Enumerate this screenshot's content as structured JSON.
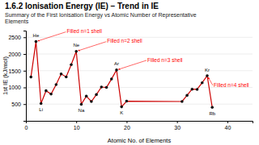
{
  "chart_data": {
    "type": "line",
    "title": "1.6.2 Ionisation Energy (IE) – Trend in IE",
    "subtitle": "Summary of the First Ionisation Energy vs Atomic Number of Representative\nElements",
    "xlabel": "Atomic No. of Elements",
    "ylabel": "1st IE (kJ/mol)",
    "x": [
      1,
      2,
      3,
      4,
      5,
      6,
      7,
      8,
      9,
      10,
      11,
      12,
      13,
      14,
      15,
      16,
      17,
      18,
      19,
      20,
      31,
      32,
      33,
      34,
      35,
      36,
      37
    ],
    "values": [
      1312,
      2372,
      520,
      900,
      800,
      1086,
      1402,
      1314,
      1681,
      2080,
      496,
      738,
      578,
      786,
      1012,
      1000,
      1251,
      1521,
      419,
      590,
      579,
      762,
      947,
      941,
      1140,
      1351,
      403
    ],
    "color": "#cc0000",
    "marker": "circle",
    "xlim": [
      0,
      45
    ],
    "ylim": [
      0,
      2700
    ],
    "xticks": [
      0,
      10,
      20,
      30,
      40
    ],
    "yticks": [
      500,
      1000,
      1500,
      2000,
      2500
    ],
    "grid": true,
    "element_labels": [
      {
        "text": "He",
        "x": 2,
        "y": 2372
      },
      {
        "text": "Li",
        "x": 3,
        "y": 520
      },
      {
        "text": "Ne",
        "x": 10,
        "y": 2080
      },
      {
        "text": "Na",
        "x": 11,
        "y": 496
      },
      {
        "text": "Ar",
        "x": 18,
        "y": 1521
      },
      {
        "text": "K",
        "x": 19,
        "y": 419
      },
      {
        "text": "Kr",
        "x": 36,
        "y": 1351
      },
      {
        "text": "Rb",
        "x": 37,
        "y": 403
      }
    ],
    "annotations": [
      {
        "text": "Filled n=1 shell",
        "x": 2,
        "y": 2372
      },
      {
        "text": "Filled n=2 shell",
        "x": 10,
        "y": 2080
      },
      {
        "text": "Filled n=3 shell",
        "x": 18,
        "y": 1521
      },
      {
        "text": "Filled n=4 shell",
        "x": 36,
        "y": 1351
      }
    ]
  }
}
